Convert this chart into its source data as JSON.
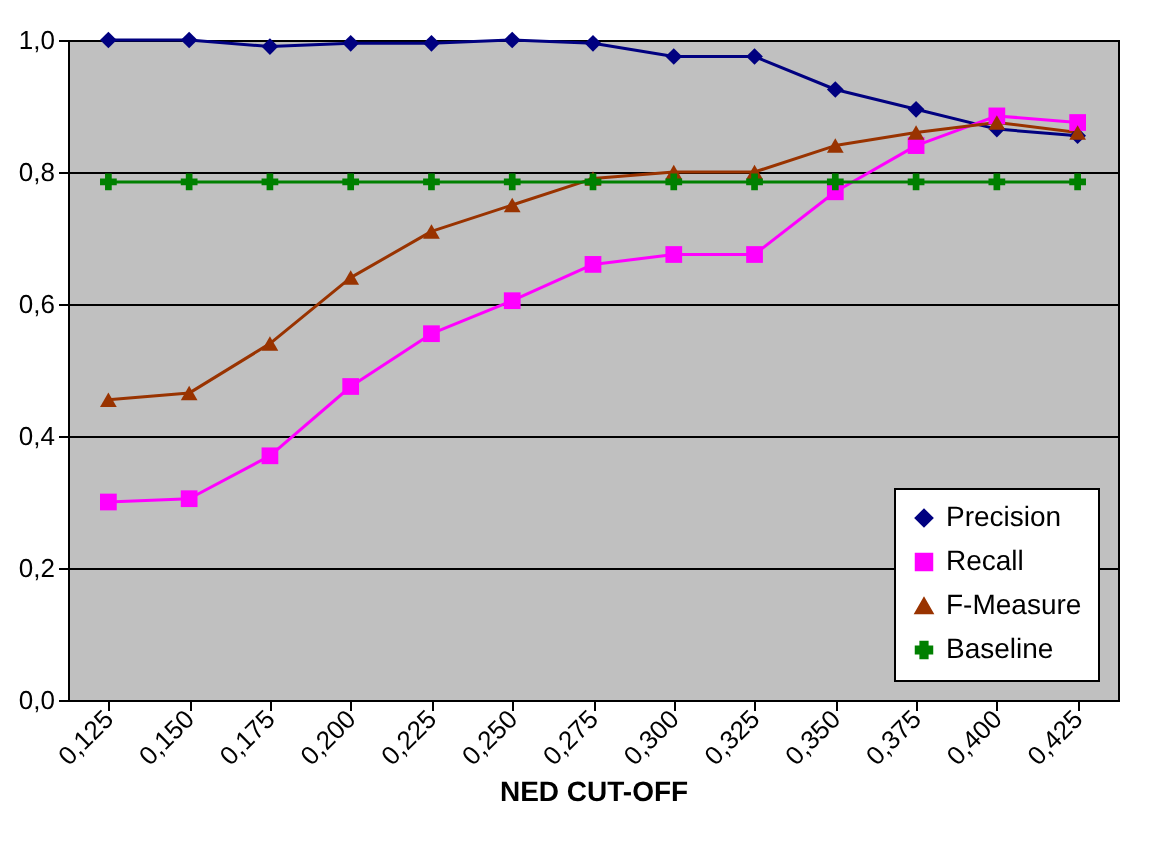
{
  "chart_data": {
    "type": "line",
    "xlabel": "NED CUT-OFF",
    "categories": [
      "0,125",
      "0,150",
      "0,175",
      "0,200",
      "0,225",
      "0,250",
      "0,275",
      "0,300",
      "0,325",
      "0,350",
      "0,375",
      "0,400",
      "0,425"
    ],
    "series": [
      {
        "name": "Precision",
        "color": "#000080",
        "marker": "diamond",
        "values": [
          1.0,
          1.0,
          0.99,
          0.995,
          0.995,
          1.0,
          0.995,
          0.975,
          0.975,
          0.925,
          0.895,
          0.865,
          0.855
        ]
      },
      {
        "name": "Recall",
        "color": "#ff00ff",
        "marker": "square",
        "values": [
          0.3,
          0.305,
          0.37,
          0.475,
          0.555,
          0.605,
          0.66,
          0.675,
          0.675,
          0.77,
          0.84,
          0.885,
          0.875
        ]
      },
      {
        "name": "F-Measure",
        "color": "#993300",
        "marker": "triangle",
        "values": [
          0.455,
          0.465,
          0.54,
          0.64,
          0.71,
          0.75,
          0.79,
          0.8,
          0.8,
          0.84,
          0.86,
          0.875,
          0.86
        ]
      },
      {
        "name": "Baseline",
        "color": "#008000",
        "marker": "cross",
        "values": [
          0.785,
          0.785,
          0.785,
          0.785,
          0.785,
          0.785,
          0.785,
          0.785,
          0.785,
          0.785,
          0.785,
          0.785,
          0.785
        ]
      }
    ],
    "ylim": [
      0,
      1.0
    ],
    "yticks": [
      {
        "value": 0,
        "label": "0,0"
      },
      {
        "value": 0.2,
        "label": "0,2"
      },
      {
        "value": 0.4,
        "label": "0,4"
      },
      {
        "value": 0.6,
        "label": "0,6"
      },
      {
        "value": 0.8,
        "label": "0,8"
      },
      {
        "value": 1.0,
        "label": "1,0"
      }
    ],
    "grid": "y",
    "legend": "bottom right"
  }
}
